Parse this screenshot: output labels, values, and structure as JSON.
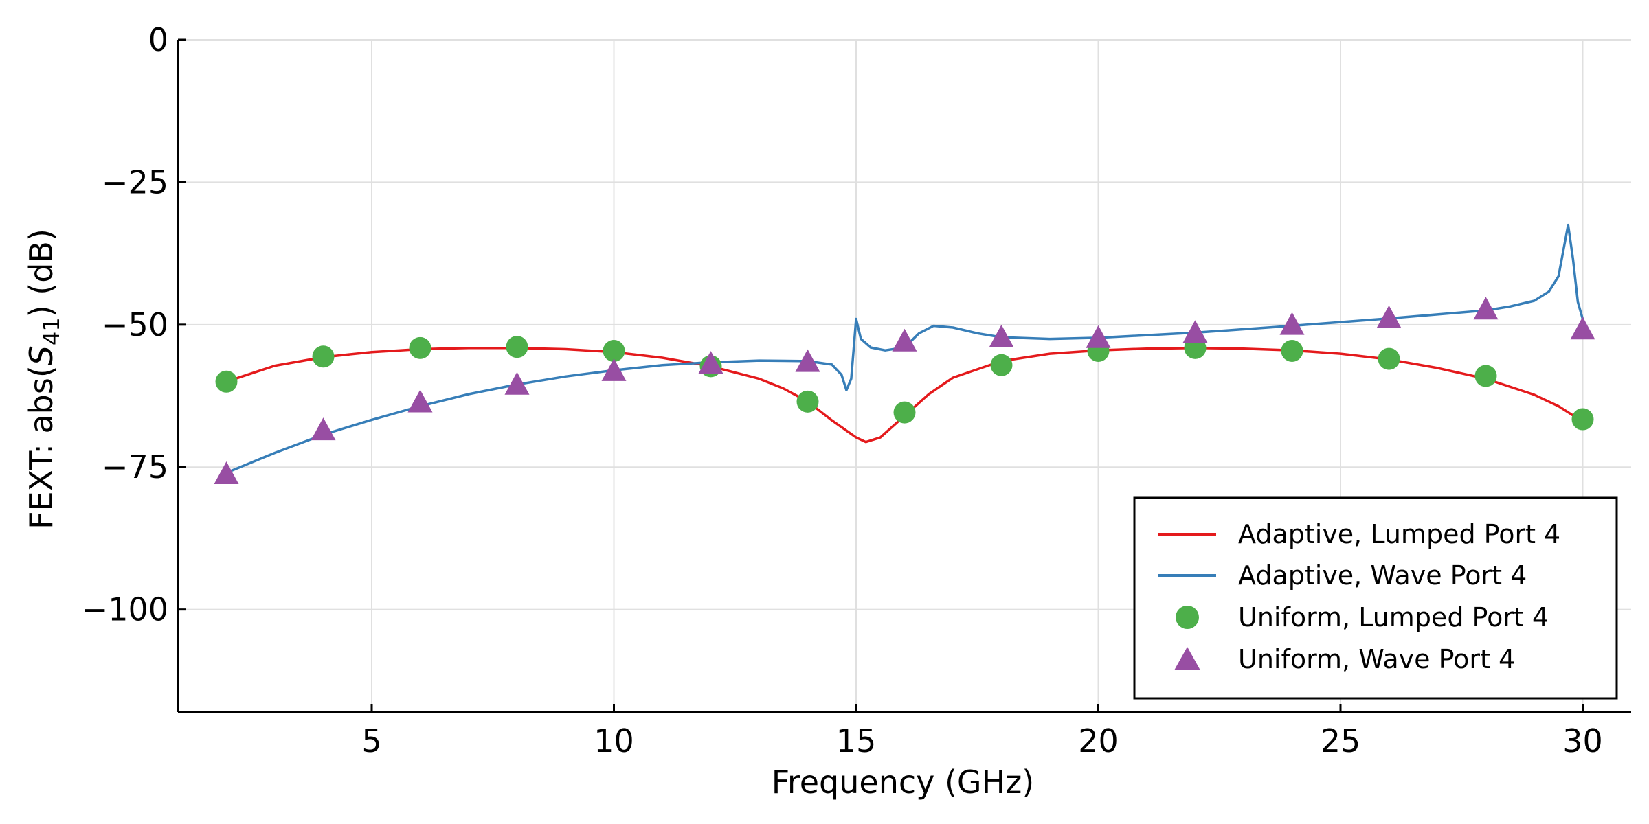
{
  "colors": {
    "adaptive_lumped": "#e41a1c",
    "adaptive_wave": "#377eb8",
    "uniform_lumped": "#4daf4a",
    "uniform_wave": "#984ea3",
    "grid": "#e0e0e0"
  },
  "chart_data": {
    "type": "line",
    "title": "",
    "xlabel": "Frequency  (GHz)",
    "ylabel_prefix": "FEXT: abs(",
    "ylabel_var": "S",
    "ylabel_sub": "41",
    "ylabel_suffix": ")  (dB)",
    "xlim": [
      1,
      31
    ],
    "ylim": [
      -118,
      0
    ],
    "grid": true,
    "legend_position": "bottom-right",
    "x_ticks": [
      5,
      10,
      15,
      20,
      25,
      30
    ],
    "x_tick_labels": [
      "5",
      "10",
      "15",
      "20",
      "25",
      "30"
    ],
    "y_ticks": [
      0,
      -25,
      -50,
      -75,
      -100
    ],
    "y_tick_labels": [
      "0",
      "−25",
      "−50",
      "−75",
      "−100"
    ],
    "series": [
      {
        "name": "Adaptive, Lumped Port 4",
        "kind": "line",
        "color": "#e41a1c",
        "x": [
          2,
          3,
          4,
          5,
          6,
          7,
          8,
          9,
          10,
          11,
          12,
          13,
          13.5,
          14,
          14.5,
          15,
          15.2,
          15.5,
          16,
          16.5,
          17,
          18,
          19,
          20,
          21,
          22,
          23,
          24,
          25,
          26,
          27,
          28,
          29,
          29.5,
          30
        ],
        "y": [
          -60,
          -57.2,
          -55.7,
          -54.8,
          -54.3,
          -54.1,
          -54.1,
          -54.3,
          -54.8,
          -55.8,
          -57.3,
          -59.5,
          -61.2,
          -63.5,
          -66.8,
          -69.8,
          -70.6,
          -69.8,
          -66,
          -62.2,
          -59.3,
          -56.4,
          -55.1,
          -54.5,
          -54.2,
          -54.1,
          -54.2,
          -54.5,
          -55.1,
          -56.1,
          -57.6,
          -59.5,
          -62.3,
          -64.3,
          -67
        ]
      },
      {
        "name": "Adaptive, Wave Port 4",
        "kind": "line",
        "color": "#377eb8",
        "x": [
          2,
          3,
          4,
          5,
          6,
          7,
          8,
          9,
          10,
          11,
          12,
          13,
          14,
          14.5,
          14.7,
          14.8,
          14.9,
          15,
          15.1,
          15.3,
          15.6,
          16,
          16.3,
          16.6,
          17,
          17.5,
          18,
          19,
          20,
          22,
          24,
          26,
          27,
          28,
          28.5,
          29,
          29.3,
          29.5,
          29.7,
          29.8,
          29.9,
          30
        ],
        "y": [
          -76,
          -72.5,
          -69.3,
          -66.7,
          -64.3,
          -62.2,
          -60.5,
          -59.1,
          -58,
          -57.1,
          -56.6,
          -56.3,
          -56.4,
          -57,
          -58.8,
          -61.5,
          -59.5,
          -49,
          -52.5,
          -54,
          -54.5,
          -54,
          -51.5,
          -50.2,
          -50.5,
          -51.5,
          -52.2,
          -52.5,
          -52.3,
          -51.4,
          -50.2,
          -48.9,
          -48.2,
          -47.5,
          -46.8,
          -45.8,
          -44.2,
          -41.5,
          -32.5,
          -38.5,
          -46,
          -49
        ]
      },
      {
        "name": "Uniform, Lumped Port 4",
        "kind": "scatter",
        "marker": "circle",
        "color": "#4daf4a",
        "x": [
          2,
          4,
          6,
          8,
          10,
          12,
          14,
          16,
          18,
          20,
          22,
          24,
          26,
          28,
          30
        ],
        "y": [
          -60,
          -55.6,
          -54.1,
          -53.9,
          -54.6,
          -57.3,
          -63.5,
          -65.4,
          -57.1,
          -54.6,
          -54.1,
          -54.6,
          -56,
          -59,
          -66.6
        ]
      },
      {
        "name": "Uniform, Wave Port 4",
        "kind": "scatter",
        "marker": "triangle",
        "color": "#984ea3",
        "x": [
          2,
          4,
          6,
          8,
          10,
          12,
          14,
          16,
          18,
          20,
          22,
          24,
          26,
          28,
          30
        ],
        "y": [
          -76.3,
          -68.6,
          -63.7,
          -60.6,
          -58.2,
          -56.9,
          -56.6,
          -53,
          -52.3,
          -52.4,
          -51.5,
          -50.1,
          -48.9,
          -47.4,
          -50.9
        ]
      }
    ]
  }
}
